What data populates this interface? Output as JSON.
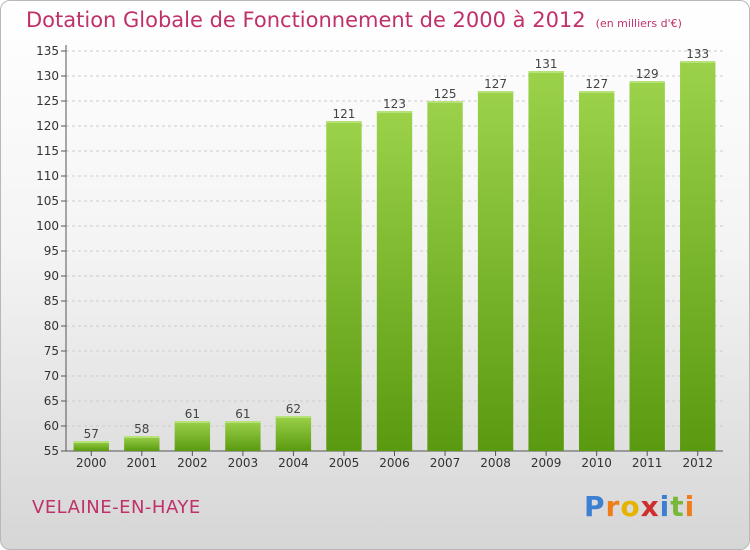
{
  "title": "Dotation Globale de Fonctionnement de 2000 à 2012",
  "unit_note": "(en milliers d'€)",
  "commune": "VELAINE-EN-HAYE",
  "logo": {
    "text": "Proxiti",
    "letters": [
      {
        "ch": "P",
        "color": "#3d7fd1"
      },
      {
        "ch": "r",
        "color": "#ef7d1a"
      },
      {
        "ch": "o",
        "color": "#e6b400"
      },
      {
        "ch": "x",
        "color": "#cf2e2e"
      },
      {
        "ch": "i",
        "color": "#3d7fd1"
      },
      {
        "ch": "t",
        "color": "#7ab83a"
      },
      {
        "ch": "i",
        "color": "#ef7d1a"
      }
    ]
  },
  "colors": {
    "title": "#c0306a",
    "bar_top": "#9bd24a",
    "bar_bottom": "#5a9a10",
    "grid": "#cccccc"
  },
  "chart_data": {
    "type": "bar",
    "title": "Dotation Globale de Fonctionnement de 2000 à 2012",
    "xlabel": "",
    "ylabel": "",
    "categories": [
      "2000",
      "2001",
      "2002",
      "2003",
      "2004",
      "2005",
      "2006",
      "2007",
      "2008",
      "2009",
      "2010",
      "2011",
      "2012"
    ],
    "values": [
      57,
      58,
      61,
      61,
      62,
      121,
      123,
      125,
      127,
      131,
      127,
      129,
      133
    ],
    "ylim": [
      55,
      135
    ],
    "yticks": [
      55,
      60,
      65,
      70,
      75,
      80,
      85,
      90,
      95,
      100,
      105,
      110,
      115,
      120,
      125,
      130,
      135
    ],
    "grid": true,
    "data_labels": true
  }
}
